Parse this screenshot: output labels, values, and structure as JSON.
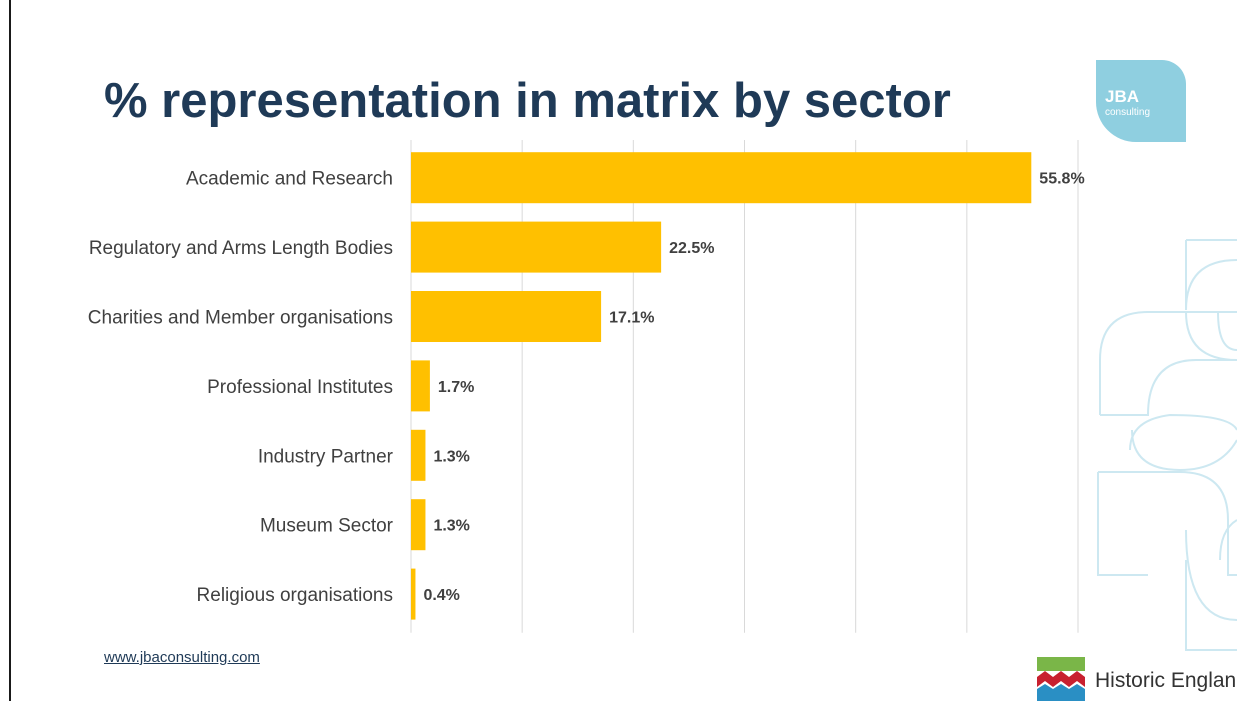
{
  "slide": {
    "title": "% representation in matrix by sector",
    "link": "www.jbaconsulting.com",
    "logo_top_main": "JBA",
    "logo_top_sub": "consulting",
    "logo_bottom_text": "Historic England"
  },
  "colors": {
    "bar": "#FFC000",
    "title": "#1f3a57",
    "gridline": "#d9d9d9",
    "jba_logo": "#8fcfe0",
    "deco_lines": "#cde8f1",
    "he_green": "#7ab648",
    "he_red": "#c8202f",
    "he_blue": "#2a8fc4"
  },
  "chart_data": {
    "type": "bar",
    "orientation": "horizontal",
    "categories": [
      "Academic and Research",
      "Regulatory and Arms Length Bodies",
      "Charities and Member organisations",
      "Professional Institutes",
      "Industry Partner",
      "Museum Sector",
      "Religious organisations"
    ],
    "values": [
      55.8,
      22.5,
      17.1,
      1.7,
      1.3,
      1.3,
      0.4
    ],
    "data_labels": [
      "55.8%",
      "22.5%",
      "17.1%",
      "1.7%",
      "1.3%",
      "1.3%",
      "0.4%"
    ],
    "xlim": [
      0,
      60
    ],
    "grid": true
  }
}
